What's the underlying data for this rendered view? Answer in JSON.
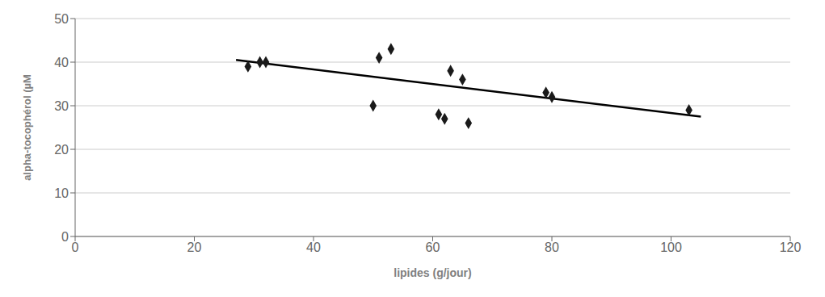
{
  "chart_data": {
    "type": "scatter",
    "xlabel": "lipides (g/jour)",
    "ylabel": "alpha-tocophérol (µM",
    "xlim": [
      0,
      120
    ],
    "ylim": [
      0,
      50
    ],
    "xticks": [
      0,
      20,
      40,
      60,
      80,
      100,
      120
    ],
    "yticks": [
      0,
      10,
      20,
      30,
      40,
      50
    ],
    "grid": true,
    "series": [
      {
        "type": "line",
        "color": "#000000",
        "line_style": "solid",
        "x": [
          27,
          105
        ],
        "values": [
          40.5,
          27.5
        ]
      },
      {
        "type": "scatter",
        "color": "#1a1a1a",
        "marker": "diamond",
        "x": [
          29,
          31,
          32,
          50,
          51,
          53,
          61,
          62,
          63,
          65,
          66,
          79,
          80,
          103
        ],
        "values": [
          39,
          40,
          40,
          30,
          41,
          43,
          28,
          27,
          38,
          36,
          26,
          33,
          32,
          29
        ]
      }
    ]
  }
}
